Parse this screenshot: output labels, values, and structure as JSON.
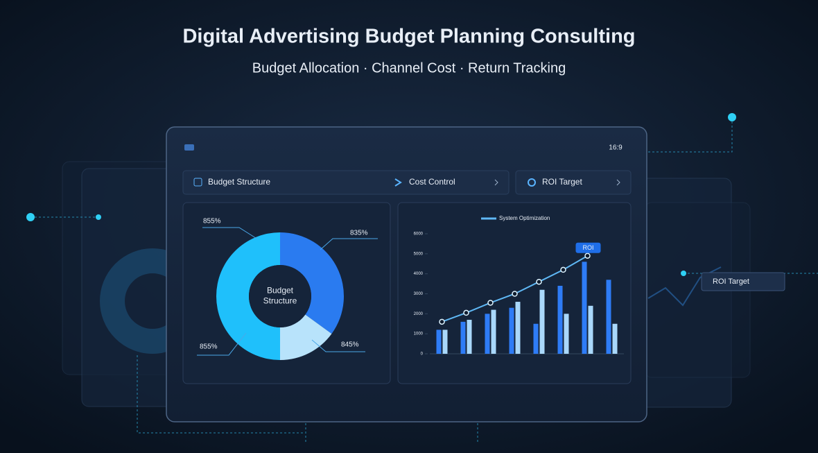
{
  "header": {
    "title": "Digital Advertising Budget Planning Consulting",
    "subtitle": "Budget Allocation · Channel Cost · Return Tracking"
  },
  "dashboard": {
    "time": "16:9",
    "tabs": [
      "Budget Structure",
      "Cost Control",
      "ROI Target"
    ],
    "floating_label": "ROI Target"
  },
  "chart_data": [
    {
      "type": "pie",
      "center_label": "Budget Structure",
      "values": [
        35,
        15,
        50
      ],
      "colors": [
        "#2a7bf0",
        "#b8e3fb",
        "#1fc0fb"
      ],
      "annotations": [
        "855%",
        "835%",
        "855%",
        "845%"
      ]
    },
    {
      "type": "bar",
      "categories": [
        null,
        null,
        null,
        null,
        null,
        null,
        null,
        null
      ],
      "series": [
        {
          "color": "#2e7cf6",
          "values": [
            1200,
            1600,
            2000,
            2300,
            1500,
            3400,
            4600,
            3700
          ]
        },
        {
          "color": "#a9d8fb",
          "values": [
            1200,
            1700,
            2200,
            2600,
            3200,
            2000,
            2400,
            1500
          ]
        },
        {
          "name": "System Optimization",
          "type": "line",
          "color": "#5fb8f5",
          "values": [
            1600,
            2050,
            2550,
            3000,
            3600,
            4200,
            4900,
            null
          ]
        }
      ],
      "annotation": "ROI",
      "ylim": [
        0,
        6000
      ],
      "yticks": [
        0,
        1000,
        2000,
        3000,
        4000,
        5000,
        6000
      ]
    }
  ]
}
